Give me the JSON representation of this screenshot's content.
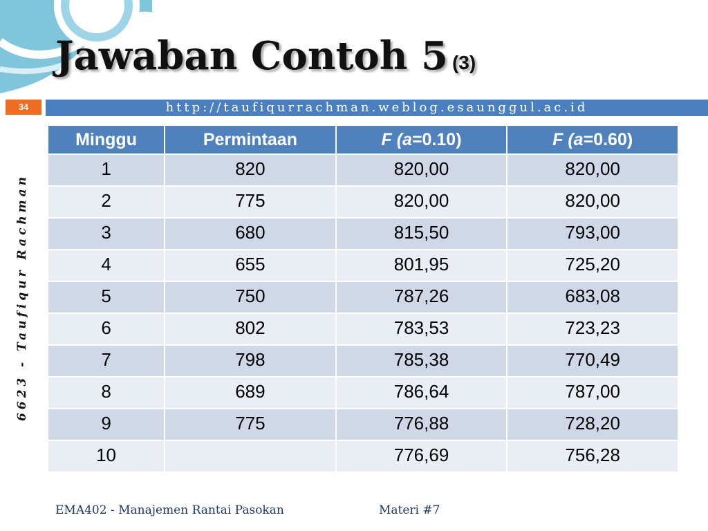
{
  "slide": {
    "title_main": "Jawaban Contoh 5",
    "title_sub": "(3)",
    "url": "http://taufiqurrachman.weblog.esaunggul.ac.id",
    "page_number": "34",
    "sidebar_text": "6623 - Taufiqur Rachman"
  },
  "table": {
    "headers": [
      {
        "pre": "Minggu",
        "italic": "",
        "post": ""
      },
      {
        "pre": "Permintaan",
        "italic": "",
        "post": ""
      },
      {
        "pre": "",
        "italic": "F (a",
        "post": "=0.10)"
      },
      {
        "pre": "",
        "italic": "F (a",
        "post": "=0.60)"
      }
    ],
    "rows": [
      [
        "1",
        "820",
        "820,00",
        "820,00"
      ],
      [
        "2",
        "775",
        "820,00",
        "820,00"
      ],
      [
        "3",
        "680",
        "815,50",
        "793,00"
      ],
      [
        "4",
        "655",
        "801,95",
        "725,20"
      ],
      [
        "5",
        "750",
        "787,26",
        "683,08"
      ],
      [
        "6",
        "802",
        "783,53",
        "723,23"
      ],
      [
        "7",
        "798",
        "785,38",
        "770,49"
      ],
      [
        "8",
        "689",
        "786,64",
        "787,00"
      ],
      [
        "9",
        "775",
        "776,88",
        "728,20"
      ],
      [
        "10",
        "",
        "776,69",
        "756,28"
      ]
    ]
  },
  "footer": {
    "course": "EMA402 - Manajemen Rantai Pasokan",
    "materi": "Materi #7"
  },
  "colors": {
    "header_bg": "#4f81bd",
    "row_odd": "#d0d8e8",
    "row_even": "#e9edf4",
    "url_bar": "#4a7fc1",
    "page_badge": "#ef6d22",
    "decor": "#7fc6dc"
  }
}
